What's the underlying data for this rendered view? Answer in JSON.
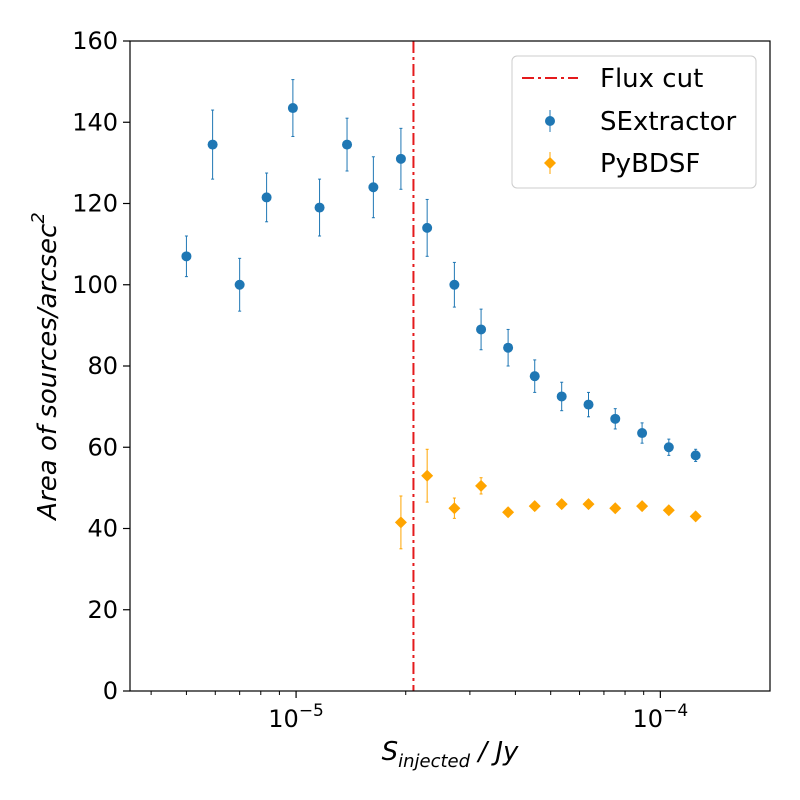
{
  "chart_data": {
    "type": "scatter",
    "x_scale": "log",
    "xlim": [
      3.5e-06,
      0.0002
    ],
    "ylim": [
      0,
      160
    ],
    "xlabel": {
      "main": "S",
      "sub": "injected",
      "rest": " / Jy"
    },
    "ylabel": {
      "main": "Area of sources/arcsec",
      "sup": "2"
    },
    "y_ticks": [
      "0",
      "20",
      "40",
      "60",
      "80",
      "100",
      "120",
      "140",
      "160"
    ],
    "x_ticks": [
      {
        "value": 1e-05,
        "base": "10",
        "exp": "−5"
      },
      {
        "value": 0.0001,
        "base": "10",
        "exp": "−4"
      }
    ],
    "grid": false,
    "legend_position": "top-right",
    "flux_cut": {
      "name": "Flux cut",
      "x": 2.1e-05,
      "color": "#e41a1c",
      "style": "dash-dot"
    },
    "series": [
      {
        "name": "SExtractor",
        "marker": "circle",
        "color": "#1f77b4",
        "x": [
          5e-06,
          5.9e-06,
          7e-06,
          8.3e-06,
          9.8e-06,
          1.16e-05,
          1.38e-05,
          1.63e-05,
          1.94e-05,
          2.29e-05,
          2.72e-05,
          3.22e-05,
          3.82e-05,
          4.52e-05,
          5.36e-05,
          6.35e-05,
          7.52e-05,
          8.91e-05,
          0.0001055,
          0.000125
        ],
        "y": [
          107,
          134.5,
          100,
          121.5,
          143.5,
          119,
          134.5,
          124,
          131,
          114,
          100,
          89,
          84.5,
          77.5,
          72.5,
          70.5,
          67,
          63.5,
          60,
          58
        ],
        "yerr": [
          5,
          8.5,
          6.5,
          6,
          7,
          7,
          6.5,
          7.5,
          7.5,
          7,
          5.5,
          5,
          4.5,
          4,
          3.5,
          3,
          2.5,
          2.5,
          2,
          1.5
        ]
      },
      {
        "name": "PyBDSF",
        "marker": "diamond",
        "color": "#ffa500",
        "x": [
          1.94e-05,
          2.29e-05,
          2.72e-05,
          3.22e-05,
          3.82e-05,
          4.52e-05,
          5.36e-05,
          6.35e-05,
          7.52e-05,
          8.91e-05,
          0.0001055,
          0.000125
        ],
        "y": [
          41.5,
          53,
          45,
          50.5,
          44,
          45.5,
          46,
          46,
          45,
          45.5,
          44.5,
          43
        ],
        "yerr": [
          6.5,
          6.5,
          2.5,
          2,
          1,
          1,
          1,
          1,
          0.8,
          0.8,
          0.8,
          0.8
        ]
      }
    ]
  }
}
